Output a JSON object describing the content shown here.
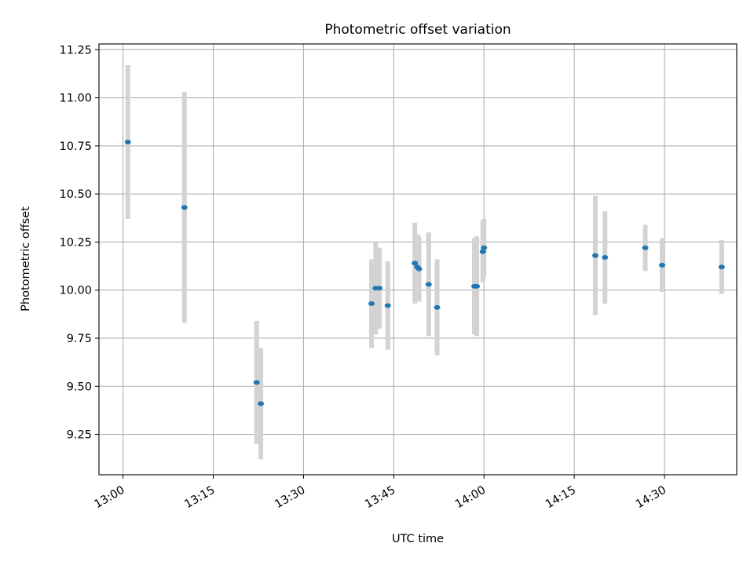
{
  "chart_data": {
    "type": "scatter",
    "title": "Photometric offset variation",
    "xlabel": "UTC time",
    "ylabel": "Photometric offset",
    "x_ticks": [
      "13:00",
      "13:15",
      "13:30",
      "13:45",
      "14:00",
      "14:15",
      "14:30"
    ],
    "y_ticks": [
      "9.25",
      "9.50",
      "9.75",
      "10.00",
      "10.25",
      "10.50",
      "10.75",
      "11.00",
      "11.25"
    ],
    "xlim": [
      "12:56",
      "14:42"
    ],
    "ylim": [
      9.04,
      11.28
    ],
    "grid": true,
    "colors": {
      "points": "#1f77b4",
      "error_bars": "#d3d3d3",
      "grid": "#b0b0b0"
    },
    "points": [
      {
        "x": "13:00:48",
        "y": 10.77,
        "err": 0.4
      },
      {
        "x": "13:10:12",
        "y": 10.43,
        "err": 0.6
      },
      {
        "x": "13:22:12",
        "y": 9.52,
        "err": 0.32
      },
      {
        "x": "13:22:54",
        "y": 9.41,
        "err": 0.29
      },
      {
        "x": "13:41:18",
        "y": 9.93,
        "err": 0.23
      },
      {
        "x": "13:42:00",
        "y": 10.01,
        "err": 0.24
      },
      {
        "x": "13:42:36",
        "y": 10.01,
        "err": 0.21
      },
      {
        "x": "13:44:00",
        "y": 9.92,
        "err": 0.23
      },
      {
        "x": "13:48:30",
        "y": 10.14,
        "err": 0.21
      },
      {
        "x": "13:48:54",
        "y": 10.12,
        "err": 0.17
      },
      {
        "x": "13:49:12",
        "y": 10.11,
        "err": 0.17
      },
      {
        "x": "13:50:48",
        "y": 10.03,
        "err": 0.27
      },
      {
        "x": "13:52:12",
        "y": 9.91,
        "err": 0.25
      },
      {
        "x": "13:58:24",
        "y": 10.02,
        "err": 0.25
      },
      {
        "x": "13:58:48",
        "y": 10.02,
        "err": 0.26
      },
      {
        "x": "13:59:48",
        "y": 10.2,
        "err": 0.16
      },
      {
        "x": "14:00:00",
        "y": 10.22,
        "err": 0.15
      },
      {
        "x": "14:18:30",
        "y": 10.18,
        "err": 0.31
      },
      {
        "x": "14:20:06",
        "y": 10.17,
        "err": 0.24
      },
      {
        "x": "14:26:48",
        "y": 10.22,
        "err": 0.12
      },
      {
        "x": "14:29:36",
        "y": 10.13,
        "err": 0.14
      },
      {
        "x": "14:39:30",
        "y": 10.12,
        "err": 0.14
      }
    ]
  }
}
